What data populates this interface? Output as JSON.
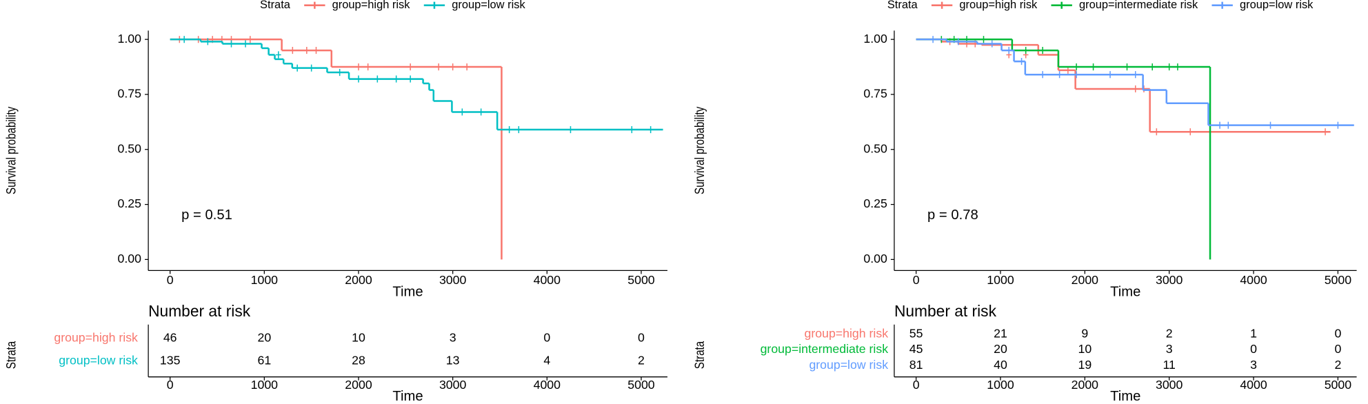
{
  "chart_data": [
    {
      "type": "kaplan-meier",
      "legend_title": "Strata",
      "ylabel": "Survival probability",
      "xlabel": "Time",
      "annotation": "p = 0.51",
      "xlim": [
        -231,
        5278
      ],
      "ylim": [
        -0.05,
        1.04
      ],
      "xticks": [
        0,
        1000,
        2000,
        3000,
        4000,
        5000
      ],
      "yticks": [
        {
          "value": 0,
          "label": "0.00"
        },
        {
          "value": 0.25,
          "label": "0.25"
        },
        {
          "value": 0.5,
          "label": "0.50"
        },
        {
          "value": 0.75,
          "label": "0.75"
        },
        {
          "value": 1,
          "label": "1.00"
        }
      ],
      "series": [
        {
          "name": "group=high risk",
          "color": "#F8766D",
          "x": [
            0,
            1185,
            1713,
            3518
          ],
          "values": [
            1,
            0.95,
            0.875,
            0
          ],
          "censor_x": [
            100,
            300,
            450,
            550,
            650,
            850,
            1300,
            1450,
            1550,
            2000,
            2100,
            2550,
            2850,
            3000,
            3150
          ],
          "censor_values": [
            1,
            1,
            1,
            1,
            1,
            1,
            0.95,
            0.95,
            0.95,
            0.875,
            0.875,
            0.875,
            0.875,
            0.875,
            0.875
          ]
        },
        {
          "name": "group=low risk",
          "color": "#00BFC4",
          "x": [
            0,
            324,
            555,
            972,
            1046,
            1111,
            1204,
            1296,
            1667,
            1898,
            2685,
            2750,
            2796,
            2991,
            3472,
            5231
          ],
          "values": [
            1,
            0.99,
            0.98,
            0.96,
            0.93,
            0.91,
            0.89,
            0.87,
            0.85,
            0.82,
            0.8,
            0.77,
            0.72,
            0.67,
            0.59,
            0.59
          ],
          "censor_x": [
            150,
            400,
            650,
            800,
            1150,
            1350,
            1500,
            1800,
            2000,
            2200,
            2400,
            2550,
            3100,
            3300,
            3600,
            3700,
            4250,
            4900,
            5100
          ],
          "censor_values": [
            1,
            0.99,
            0.98,
            0.98,
            0.93,
            0.87,
            0.87,
            0.85,
            0.82,
            0.82,
            0.82,
            0.82,
            0.67,
            0.67,
            0.59,
            0.59,
            0.59,
            0.59,
            0.59
          ]
        }
      ],
      "risk_table": {
        "title": "Number at risk",
        "ylabel": "Strata",
        "xlabel": "Time",
        "times": [
          0,
          1000,
          2000,
          3000,
          4000,
          5000
        ],
        "counts": [
          [
            46,
            20,
            10,
            3,
            0,
            0
          ],
          [
            135,
            61,
            28,
            13,
            4,
            2
          ]
        ]
      }
    },
    {
      "type": "kaplan-meier",
      "legend_title": "Strata",
      "ylabel": "Survival probability",
      "xlabel": "Time",
      "annotation": "p = 0.78",
      "xlim": [
        -259,
        5222
      ],
      "ylim": [
        -0.05,
        1.04
      ],
      "xticks": [
        0,
        1000,
        2000,
        3000,
        4000,
        5000
      ],
      "yticks": [
        {
          "value": 0,
          "label": "0.00"
        },
        {
          "value": 0.25,
          "label": "0.25"
        },
        {
          "value": 0.5,
          "label": "0.50"
        },
        {
          "value": 0.75,
          "label": "0.75"
        },
        {
          "value": 1,
          "label": "1.00"
        }
      ],
      "series": [
        {
          "name": "group=high risk",
          "color": "#F8766D",
          "x": [
            0,
            300,
            500,
            776,
            1448,
            1686,
            1888,
            2771,
            4912
          ],
          "values": [
            1,
            0.99,
            0.98,
            0.975,
            0.93,
            0.86,
            0.775,
            0.58,
            0.58
          ],
          "censor_x": [
            400,
            600,
            700,
            1100,
            1300,
            1800,
            2600,
            2700,
            2850,
            3250,
            4850
          ],
          "censor_values": [
            0.99,
            0.98,
            0.98,
            0.93,
            0.93,
            0.86,
            0.775,
            0.775,
            0.58,
            0.58,
            0.58
          ]
        },
        {
          "name": "group=intermediate risk",
          "color": "#00BA38",
          "x": [
            0,
            1138,
            1686,
            3485
          ],
          "values": [
            1,
            0.95,
            0.875,
            0
          ],
          "censor_x": [
            300,
            450,
            600,
            800,
            1300,
            1500,
            1900,
            2100,
            2500,
            2800,
            3000,
            3100
          ],
          "censor_values": [
            1,
            1,
            1,
            1,
            0.95,
            0.95,
            0.875,
            0.875,
            0.875,
            0.875,
            0.875,
            0.875
          ]
        },
        {
          "name": "group=low risk",
          "color": "#619CFF",
          "x": [
            0,
            362,
            724,
            1013,
            1160,
            1293,
            2689,
            2968,
            3464,
            5191
          ],
          "values": [
            1,
            0.99,
            0.98,
            0.95,
            0.9,
            0.84,
            0.77,
            0.71,
            0.61,
            0.61
          ],
          "censor_x": [
            200,
            500,
            900,
            1100,
            1250,
            1500,
            1700,
            1900,
            2300,
            2600,
            3600,
            3700,
            4200,
            5000
          ],
          "censor_values": [
            1,
            0.99,
            0.98,
            0.95,
            0.9,
            0.84,
            0.84,
            0.84,
            0.84,
            0.84,
            0.61,
            0.61,
            0.61,
            0.61
          ]
        }
      ],
      "risk_table": {
        "title": "Number at risk",
        "ylabel": "Strata",
        "xlabel": "Time",
        "times": [
          0,
          1000,
          2000,
          3000,
          4000,
          5000
        ],
        "counts": [
          [
            55,
            21,
            9,
            2,
            1,
            0
          ],
          [
            45,
            20,
            10,
            3,
            0,
            0
          ],
          [
            81,
            40,
            19,
            11,
            3,
            2
          ]
        ]
      }
    }
  ]
}
